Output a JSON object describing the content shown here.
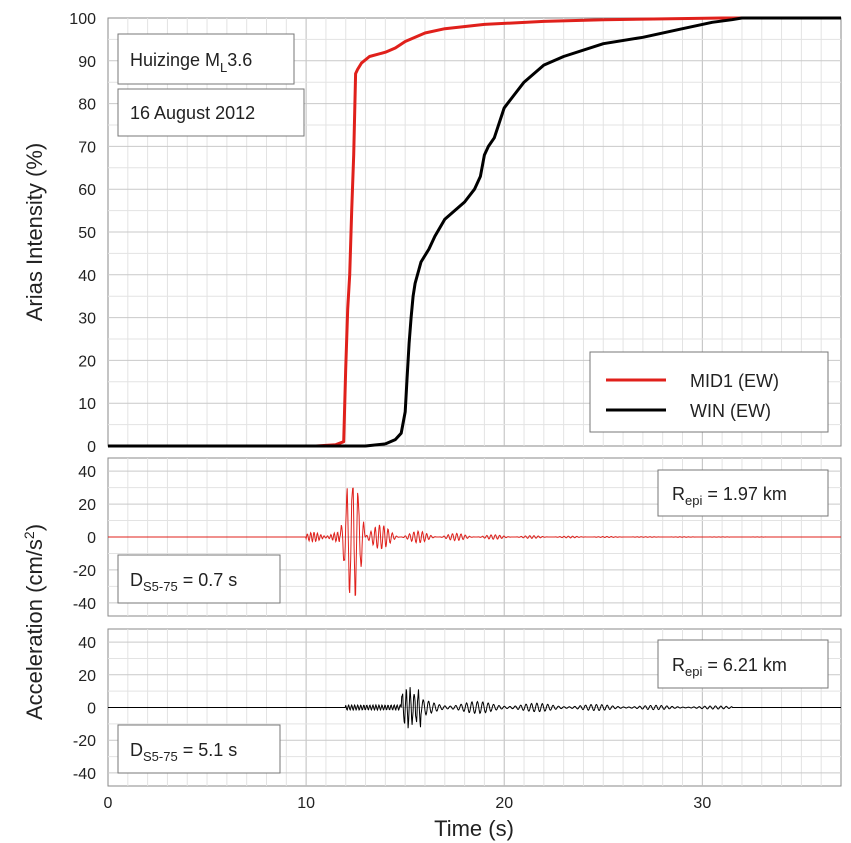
{
  "chart_data": [
    {
      "type": "line",
      "ylabel": "Arias Intensity (%)",
      "xlim": [
        0,
        37
      ],
      "ylim": [
        0,
        100
      ],
      "x_ticks": [
        "0",
        "10",
        "20",
        "30"
      ],
      "y_ticks": [
        "0",
        "10",
        "20",
        "30",
        "40",
        "50",
        "60",
        "70",
        "80",
        "90",
        "100"
      ],
      "grid": true,
      "annotations": {
        "event_label": "Huizinge M",
        "event_sub": "L",
        "event_mag": "3.6",
        "date": "16 August 2012"
      },
      "legend_position": "bottom-right",
      "series": [
        {
          "name": "MID1 (EW)",
          "color": "#e0201b",
          "x": [
            0,
            10.5,
            11.5,
            11.9,
            12.0,
            12.1,
            12.2,
            12.3,
            12.4,
            12.5,
            12.6,
            12.8,
            13.2,
            14,
            14.5,
            15,
            16,
            17,
            19,
            22,
            25,
            28,
            31,
            37
          ],
          "y": [
            0,
            0,
            0.3,
            1,
            18,
            32,
            40,
            55,
            68,
            87,
            88,
            89.5,
            91,
            92,
            93,
            94.5,
            96.5,
            97.5,
            98.5,
            99.2,
            99.6,
            99.8,
            100,
            100
          ]
        },
        {
          "name": "WIN (EW)",
          "color": "#000000",
          "x": [
            0,
            13,
            14,
            14.5,
            14.8,
            15.0,
            15.1,
            15.2,
            15.3,
            15.4,
            15.5,
            15.8,
            16.2,
            16.5,
            17,
            17.5,
            18,
            18.5,
            18.8,
            19.0,
            19.2,
            19.5,
            20,
            20.5,
            21,
            22,
            23,
            25,
            27,
            29,
            30.5,
            31.5,
            32,
            37
          ],
          "y": [
            0,
            0,
            0.5,
            1.5,
            3,
            8,
            16,
            24,
            30,
            35,
            38,
            43,
            46,
            49,
            53,
            55,
            57,
            60,
            63,
            68,
            70,
            72,
            79,
            82,
            85,
            89,
            91,
            94,
            95.5,
            97.5,
            99,
            99.6,
            100,
            100
          ]
        }
      ]
    },
    {
      "type": "line",
      "xlim": [
        0,
        37
      ],
      "ylim": [
        -48,
        48
      ],
      "y_ticks": [
        "40",
        "20",
        "0",
        "-20",
        "-40"
      ],
      "series": [
        {
          "name": "MID1 (EW)",
          "color": "#e0201b"
        }
      ],
      "annotations": {
        "repi_prefix": "R",
        "repi_sub": "epi",
        "repi_value": " = 1.97 km",
        "ds_prefix": "D",
        "ds_sub": "S5-75",
        "ds_value": " = 0.7 s"
      }
    },
    {
      "type": "line",
      "xlabel": "Time (s)",
      "xlim": [
        0,
        37
      ],
      "ylim": [
        -48,
        48
      ],
      "y_ticks": [
        "40",
        "20",
        "0",
        "-20",
        "-40"
      ],
      "x_ticks": [
        "0",
        "10",
        "20",
        "30"
      ],
      "series": [
        {
          "name": "WIN (EW)",
          "color": "#000000"
        }
      ],
      "annotations": {
        "repi_prefix": "R",
        "repi_sub": "epi",
        "repi_value": " = 6.21 km",
        "ds_prefix": "D",
        "ds_sub": "S5-75",
        "ds_value": " = 5.1 s"
      }
    }
  ],
  "shared": {
    "acc_ylabel_main": "Acceleration (cm/s",
    "acc_ylabel_sup": "2",
    "acc_ylabel_end": ")"
  }
}
